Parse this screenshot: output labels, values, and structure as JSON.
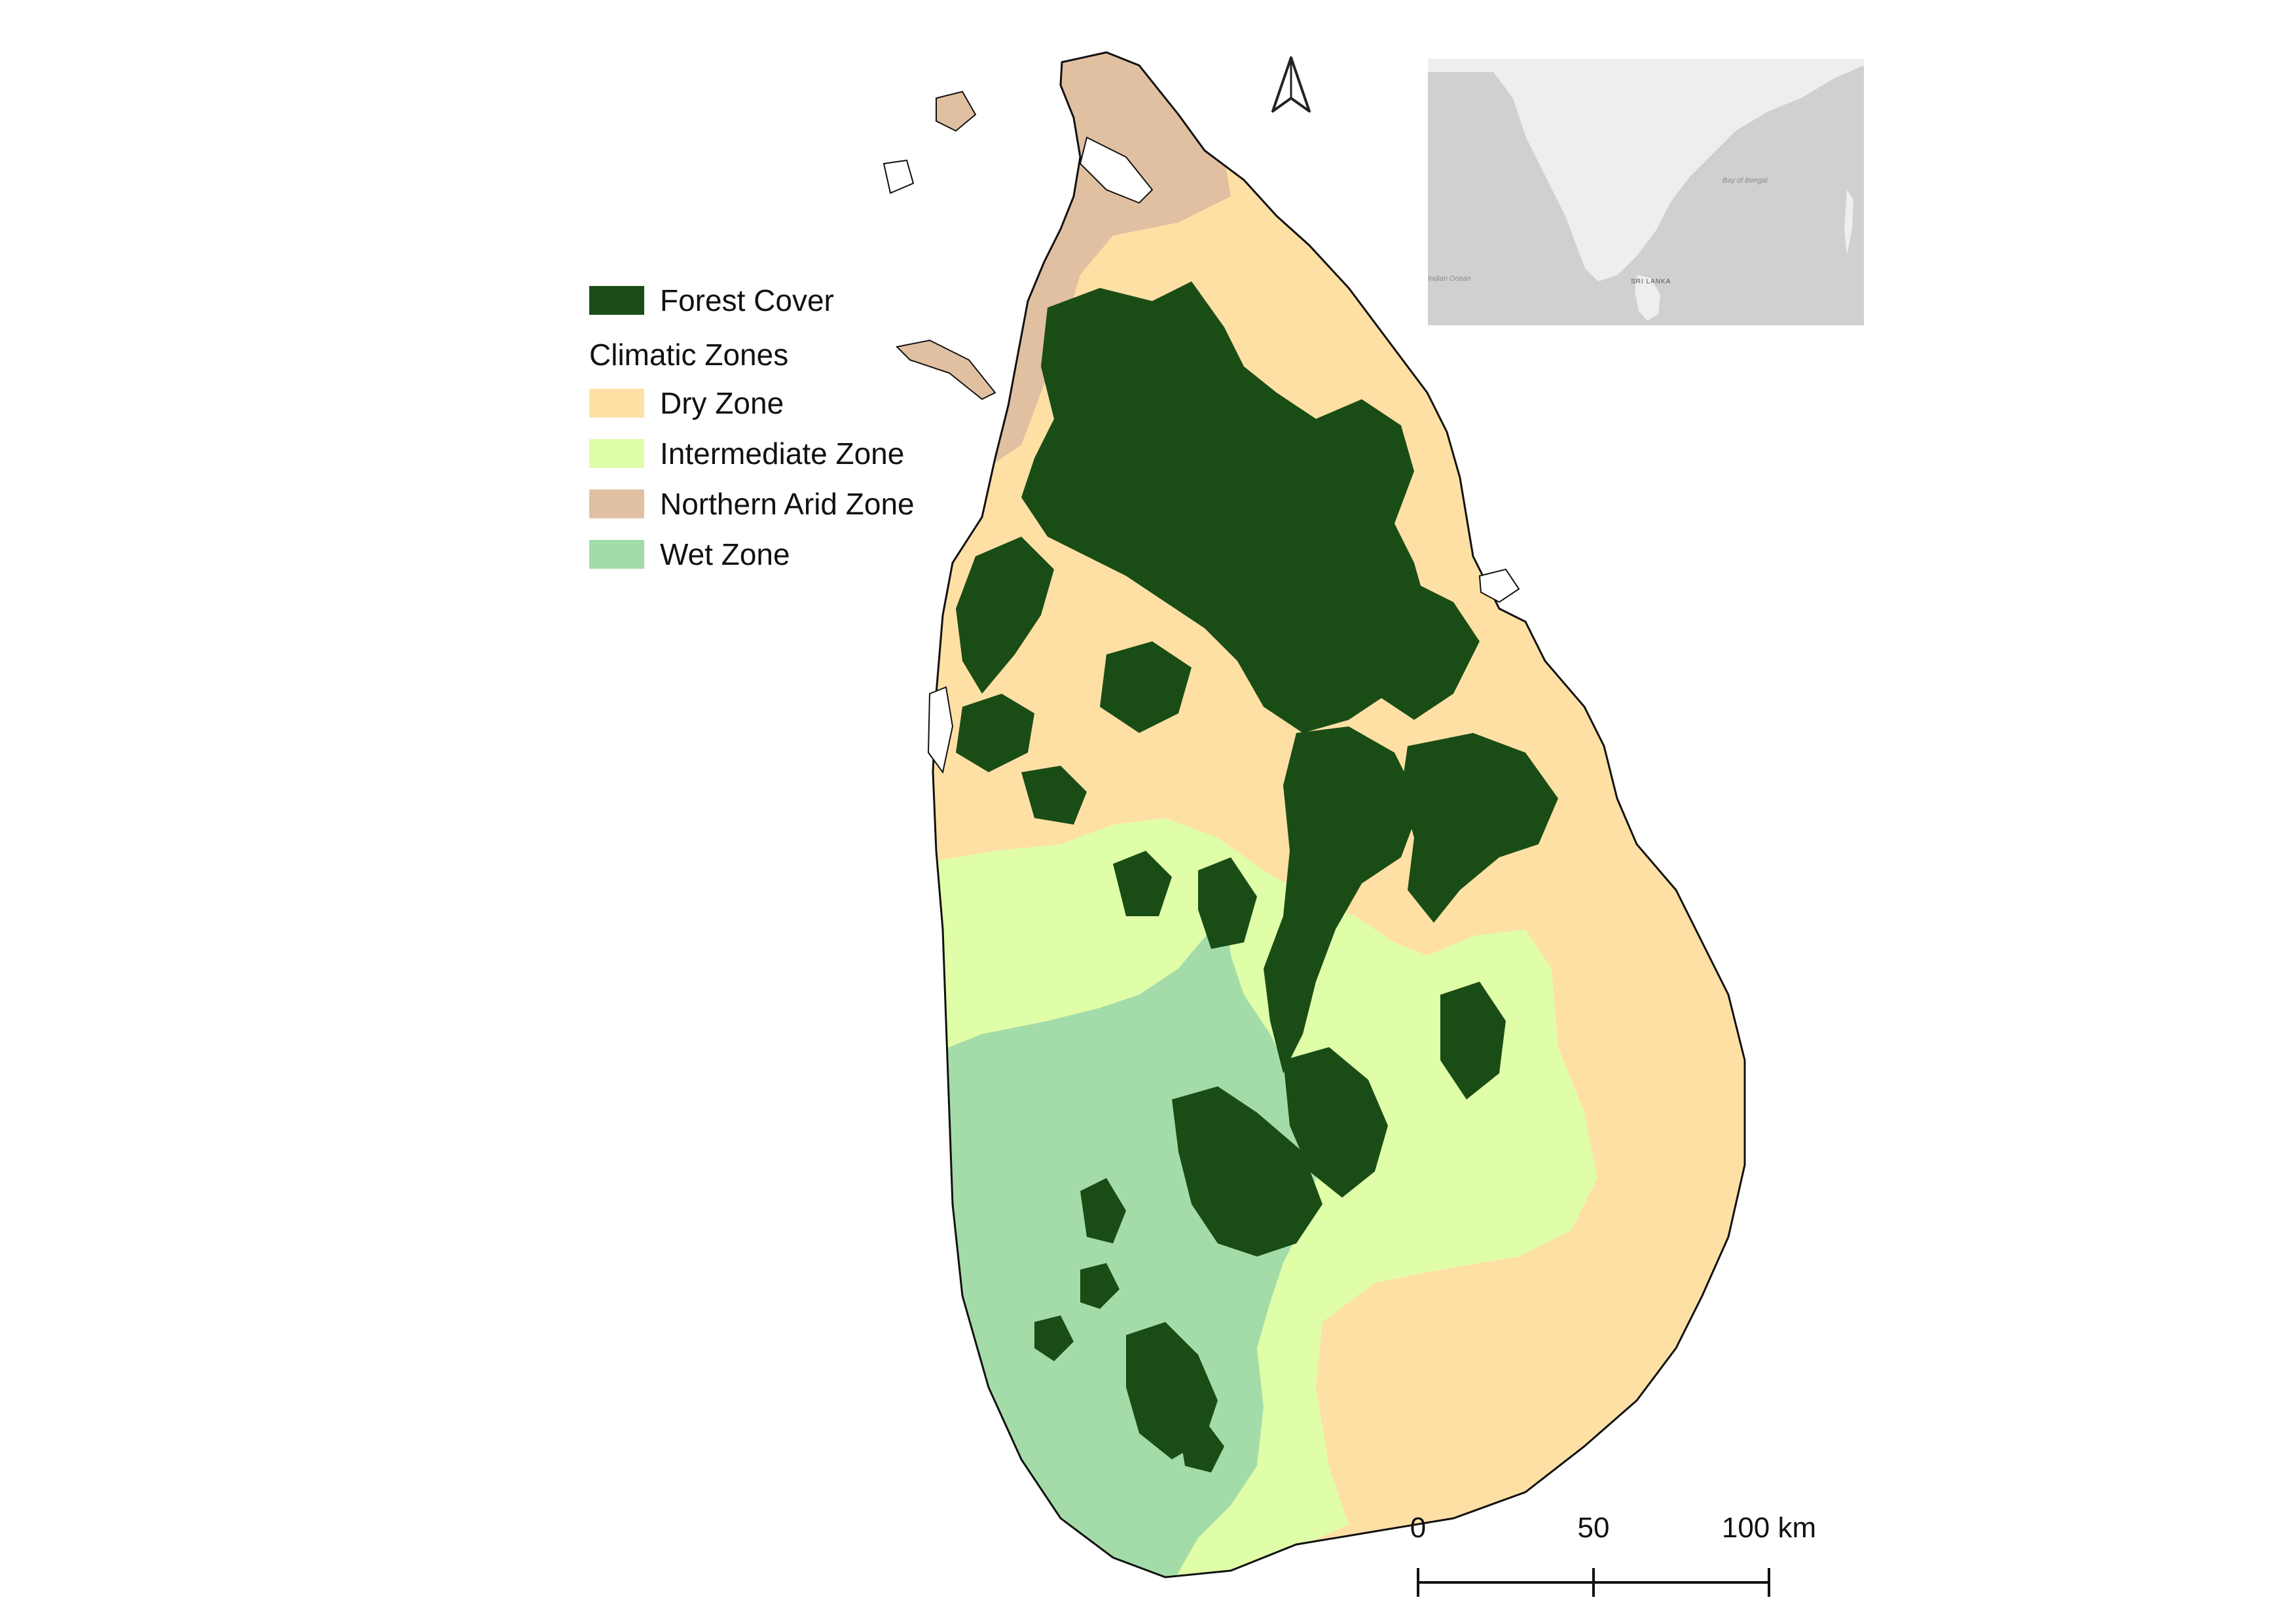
{
  "legend": {
    "forest": {
      "label": "Forest Cover",
      "color": "#1a4d16"
    },
    "heading": "Climatic Zones",
    "zones": [
      {
        "label": "Dry Zone",
        "color": "#fee0a5"
      },
      {
        "label": "Intermediate Zone",
        "color": "#e0fda8"
      },
      {
        "label": "Northern Arid Zone",
        "color": "#e1c0a2"
      },
      {
        "label": "Wet Zone",
        "color": "#a4dca9"
      }
    ]
  },
  "inset": {
    "labels": {
      "bay": "Bay of Bengal",
      "ocean": "Indian Ocean",
      "country": "SRI LANKA"
    },
    "colors": {
      "sea": "#d0d0d3",
      "land": "#eeeeee"
    }
  },
  "scale_bar": {
    "ticks": [
      "0",
      "50",
      "100 km"
    ],
    "values_km": [
      0,
      50,
      100
    ]
  },
  "north_arrow": {
    "icon": "north-arrow-icon"
  }
}
